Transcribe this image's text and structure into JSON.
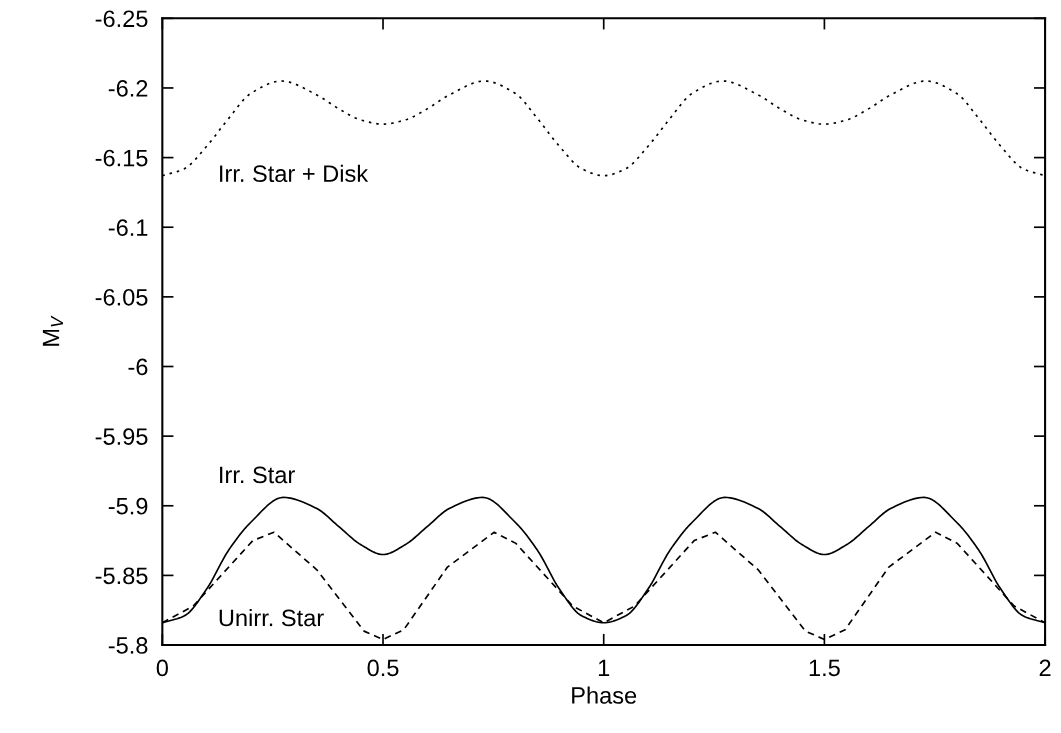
{
  "chart_data": {
    "type": "line",
    "xlabel": "Phase",
    "ylabel": "M$_{V}$",
    "xlim": [
      0,
      2
    ],
    "ylim": [
      -5.8,
      -6.25
    ],
    "xticks": [
      0,
      0.5,
      1,
      1.5,
      2
    ],
    "yticks": [
      -6.25,
      -6.2,
      -6.15,
      -6.1,
      -6.05,
      -6,
      -5.95,
      -5.9,
      -5.85,
      -5.8
    ],
    "grid": false,
    "legend": false,
    "series": [
      {
        "name": "Irr. Star + Disk",
        "color": "#000000",
        "line_style": "dotted",
        "x": [
          0,
          0.05,
          0.1,
          0.15,
          0.2,
          0.27,
          0.35,
          0.4,
          0.45,
          0.5,
          0.55,
          0.6,
          0.65,
          0.73,
          0.8,
          0.85,
          0.9,
          0.95,
          1,
          1.05,
          1.1,
          1.15,
          1.2,
          1.27,
          1.35,
          1.4,
          1.45,
          1.5,
          1.55,
          1.6,
          1.65,
          1.73,
          1.8,
          1.85,
          1.9,
          1.95,
          2
        ],
        "values": [
          -6.137,
          -6.142,
          -6.158,
          -6.178,
          -6.196,
          -6.205,
          -6.195,
          -6.185,
          -6.177,
          -6.174,
          -6.177,
          -6.185,
          -6.195,
          -6.205,
          -6.196,
          -6.178,
          -6.158,
          -6.142,
          -6.137,
          -6.142,
          -6.158,
          -6.178,
          -6.196,
          -6.205,
          -6.195,
          -6.185,
          -6.177,
          -6.174,
          -6.177,
          -6.185,
          -6.195,
          -6.205,
          -6.196,
          -6.178,
          -6.158,
          -6.142,
          -6.137
        ]
      },
      {
        "name": "Irr. Star",
        "color": "#000000",
        "line_style": "solid",
        "x": [
          0,
          0.05,
          0.1,
          0.15,
          0.2,
          0.274,
          0.35,
          0.4,
          0.45,
          0.5,
          0.55,
          0.6,
          0.65,
          0.726,
          0.8,
          0.85,
          0.9,
          0.95,
          1,
          1.05,
          1.1,
          1.15,
          1.2,
          1.274,
          1.35,
          1.4,
          1.45,
          1.5,
          1.55,
          1.6,
          1.65,
          1.726,
          1.8,
          1.85,
          1.9,
          1.95,
          2
        ],
        "values": [
          -5.816,
          -5.821,
          -5.84,
          -5.868,
          -5.888,
          -5.906,
          -5.898,
          -5.885,
          -5.872,
          -5.865,
          -5.872,
          -5.885,
          -5.898,
          -5.906,
          -5.888,
          -5.868,
          -5.84,
          -5.821,
          -5.816,
          -5.821,
          -5.84,
          -5.868,
          -5.888,
          -5.906,
          -5.898,
          -5.885,
          -5.872,
          -5.865,
          -5.872,
          -5.885,
          -5.898,
          -5.906,
          -5.888,
          -5.868,
          -5.84,
          -5.821,
          -5.816
        ]
      },
      {
        "name": "Unirr. Star",
        "color": "#000000",
        "line_style": "dashed",
        "x": [
          0,
          0.07,
          0.205,
          0.253,
          0.35,
          0.457,
          0.5,
          0.547,
          0.646,
          0.752,
          0.801,
          0.93,
          1,
          1.07,
          1.205,
          1.253,
          1.35,
          1.457,
          1.5,
          1.547,
          1.646,
          1.752,
          1.801,
          1.93,
          2
        ],
        "values": [
          -5.816,
          -5.828,
          -5.875,
          -5.881,
          -5.854,
          -5.81,
          -5.804,
          -5.811,
          -5.856,
          -5.881,
          -5.873,
          -5.828,
          -5.816,
          -5.828,
          -5.875,
          -5.881,
          -5.854,
          -5.81,
          -5.804,
          -5.811,
          -5.856,
          -5.881,
          -5.873,
          -5.828,
          -5.816
        ]
      }
    ]
  }
}
